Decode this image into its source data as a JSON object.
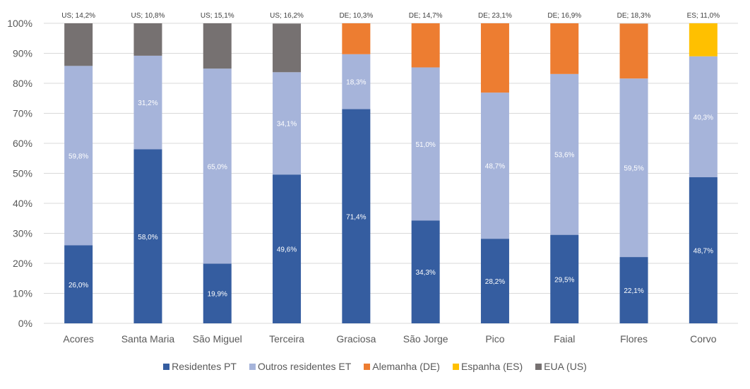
{
  "chart_data": {
    "type": "bar",
    "stacked": "percent",
    "title": "",
    "xlabel": "",
    "ylabel": "",
    "ylim": [
      0,
      100
    ],
    "yticks": [
      "0%",
      "10%",
      "20%",
      "30%",
      "40%",
      "50%",
      "60%",
      "70%",
      "80%",
      "90%",
      "100%"
    ],
    "grid": true,
    "legend_position": "bottom",
    "categories": [
      "Acores",
      "Santa Maria",
      "São Miguel",
      "Terceira",
      "Graciosa",
      "São Jorge",
      "Pico",
      "Faial",
      "Flores",
      "Corvo"
    ],
    "series": [
      {
        "name": "Residentes PT",
        "color": "#355DA0",
        "values": [
          26.0,
          58.0,
          19.9,
          49.6,
          71.4,
          34.3,
          28.2,
          29.5,
          22.1,
          48.7
        ],
        "labels": [
          "26,0%",
          "58,0%",
          "19,9%",
          "49,6%",
          "71,4%",
          "34,3%",
          "28,2%",
          "29,5%",
          "22,1%",
          "48,7%"
        ]
      },
      {
        "name": "Outros residentes ET",
        "color": "#A6B4DA",
        "values": [
          59.8,
          31.2,
          65.0,
          34.1,
          18.3,
          51.0,
          48.7,
          53.6,
          59.5,
          40.3
        ],
        "labels": [
          "59,8%",
          "31,2%",
          "65,0%",
          "34,1%",
          "18,3%",
          "51,0%",
          "48,7%",
          "53,6%",
          "59,5%",
          "40,3%"
        ]
      },
      {
        "name": "Alemanha (DE)",
        "color": "#ED7D31",
        "values": [
          0,
          0,
          0,
          0,
          10.3,
          14.7,
          23.1,
          16.9,
          18.3,
          0
        ],
        "labels": [
          "",
          "",
          "",
          "",
          "DE; 10,3%",
          "DE; 14,7%",
          "DE; 23,1%",
          "DE; 16,9%",
          "DE; 18,3%",
          ""
        ]
      },
      {
        "name": "Espanha (ES)",
        "color": "#FFC000",
        "values": [
          0,
          0,
          0,
          0,
          0,
          0,
          0,
          0,
          0,
          11.0
        ],
        "labels": [
          "",
          "",
          "",
          "",
          "",
          "",
          "",
          "",
          "",
          "ES; 11,0%"
        ]
      },
      {
        "name": "EUA (US)",
        "color": "#767171",
        "values": [
          14.2,
          10.8,
          15.1,
          16.2,
          0,
          0,
          0,
          0,
          0,
          0
        ],
        "labels": [
          "US; 14,2%",
          "US; 10,8%",
          "US; 15,1%",
          "US; 16,2%",
          "",
          "",
          "",
          "",
          "",
          ""
        ]
      }
    ],
    "top_labels_series": [
      "Alemanha (DE)",
      "Espanha (ES)",
      "EUA (US)"
    ]
  }
}
